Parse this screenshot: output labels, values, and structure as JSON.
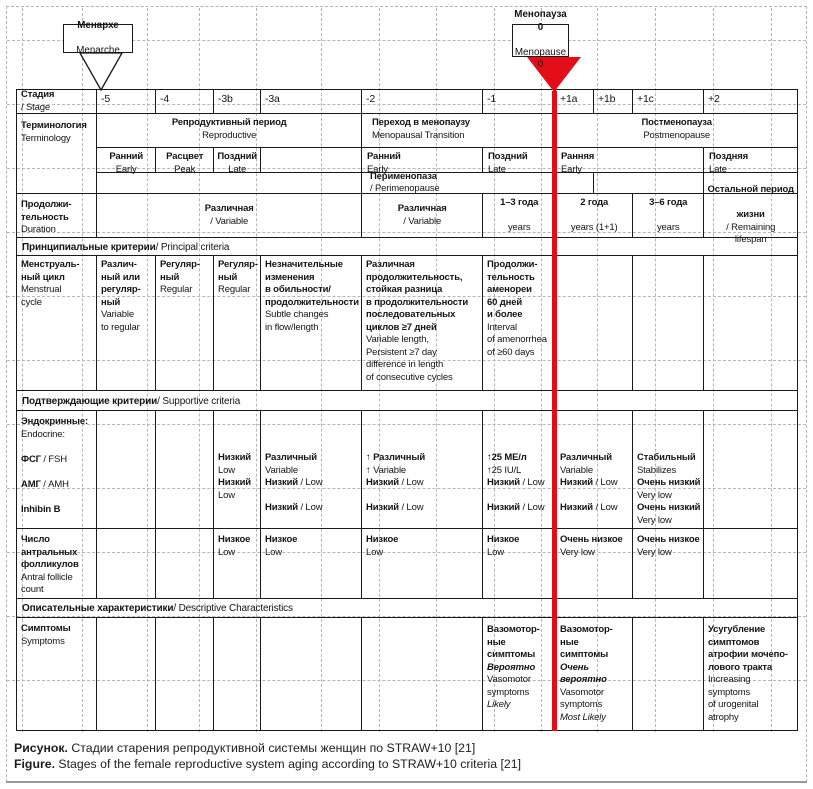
{
  "colors": {
    "red": "#e30d18",
    "grid": "#b6b6b6"
  },
  "callouts": {
    "menarche": "**Менархе**\nMenarche",
    "menopause": "**Менопауза 0**\nMenopause 0"
  },
  "header": {
    "stage_label": "**Стадия** / Stage",
    "stages": [
      "-5",
      "-4",
      "-3b",
      "-3a",
      "-2",
      "-1",
      "+1a",
      "+1b",
      "+1c",
      "+2"
    ],
    "terminology_label": "**Терминология**\nTerminology",
    "reproductive": "**Репродуктивный период**\nReproductive",
    "transition": "**Переход в менопаузу**\nMenopausal Transition",
    "postmenopause": "**Постменопауза**\nPostmenopause",
    "early_repro": "**Ранний**\nEarly",
    "peak": "**Расцвет**\nPeak",
    "late_repro": "**Поздний**\nLate",
    "early_trans": "**Ранний**\nEarly",
    "late_trans": "**Поздний**\nLate",
    "early_post": "**Ранняя**\nEarly",
    "late_post": "**Поздняя**\nLate",
    "perimenopause": "**Перименопаза** / Perimenopause"
  },
  "duration": {
    "label": "**Продолжи-**\n**тельность**\nDuration",
    "variable_repro": "**Различная** / Variable",
    "variable_trans": "**Различная** / Variable",
    "y1_3": "**1–3 года**\nyears",
    "y2": "**2 года**\nyears (1+1)",
    "y3_6": "**3–6 года**\nyears",
    "rest": "**Остальной период**\n**жизни** / Remaining\nlifespan"
  },
  "bands": {
    "principal": "**Принципиальные критерии** / Principal criteria",
    "supportive": "**Подтверждающие критерии** / Supportive criteria",
    "descriptive": "**Описательные характеристики** / Descriptive Characteristics"
  },
  "menstrual": {
    "label": "**Менструаль-**\n**ный цикл**\nMenstrual\ncycle",
    "m5": "**Различ-**\n**ный или**\n**регуляр-**\n**ный**\nVariable\nto regular",
    "m4": "**Регуляр-**\n**ный**\nRegular",
    "m3b": "**Регуляр-**\n**ный**\nRegular",
    "m3a": "**Незначительные**\n**изменения**\n**в обильности/**\n**продолжительности**\nSubtle changes\nin flow/length",
    "m2": "**Различная**\n**продолжительность,**\n**стойкая разница**\n**в продолжительности**\n**последовательных**\n**циклов ≥7 дней**\nVariable length,\nPersistent ≥7 day\ndifference in length\nof consecutive cycles",
    "m1": "**Продолжи-**\n**тельность**\n**аменореи**\n**60 дней**\n**и более**\nInterval\nof amenorrhea\nof ≥60 days"
  },
  "endocrine": {
    "label": "**Эндокринные:**\nEndocrine:\n\n**ФСГ** / FSH\n\n**АМГ** / AMH\n\n**Inhibin B**",
    "m3b": "**Низкий**\nLow\n**Низкий**\nLow",
    "m3a": "**Различный**\nVariable\n**Низкий** / Low\n\n**Низкий** / Low",
    "m2": "**↑ Различный**\n↑ Variable\n**Низкий** / Low\n\n**Низкий** / Low",
    "m1": "**↑25 МЕ/л**\n↑25 IU/L\n**Низкий** / Low\n\n**Низкий** / Low",
    "p1ab": "**Различный**\nVariable\n**Низкий** / Low\n\n**Низкий** / Low",
    "p1c": "**Стабильный**\nStabilizes\n**Очень низкий**\nVery low\n**Очень низкий**\nVery low"
  },
  "antral": {
    "label": "**Число**\n**антральных**\n**фолликулов**\nAntral follicle\ncount",
    "low": "**Низкое**\nLow",
    "very_low": "**Очень низкое**\nVery low"
  },
  "symptoms": {
    "label": "**Симптомы**\nSymptoms",
    "m1": "**Вазомотор-**\n**ные**\n**симптомы**\n***Вероятно***\nVasomotor\nsymptoms\n*Likely*",
    "p1ab": "**Вазомотор-**\n**ные**\n**симптомы**\n***Очень***\n***вероятно***\nVasomotor\nsymptoms\n*Most Likely*",
    "p2": "**Усугубление**\n**симптомов**\n**атрофии мочепо-**\n**лового тракта**\nIncreasing\nsymptoms\nof urogenital\natrophy"
  },
  "caption": {
    "ru": "**Рисунок.** Стадии старения репродуктивной системы женщин по STRAW+10 [21]",
    "en": "**Figure.** Stages of the female reproductive system aging according to STRAW+10 criteria [21]"
  }
}
